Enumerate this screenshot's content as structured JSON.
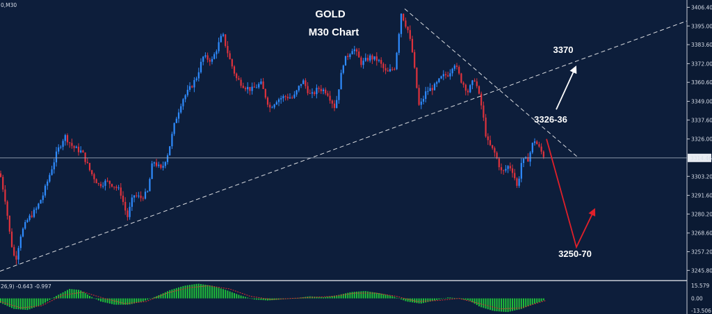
{
  "colors": {
    "background": "#0d1e3b",
    "bull_candle": "#2f8cff",
    "bear_candle": "#e0323c",
    "trendline": "#ffffff",
    "price_line": "#9aa6b8",
    "arrow_up": "#ffffff",
    "arrow_down": "#e0202a",
    "histogram": "#1fbf3a",
    "signal": "#e03030",
    "scale_bg": "#0b1a33"
  },
  "header": {
    "symbol_label": "0,M30",
    "title_line1": "GOLD",
    "title_line2": "M30 Chart"
  },
  "chart_data": {
    "type": "candlestick",
    "symbol": "GOLD",
    "timeframe": "M30",
    "ylim": [
      3240.0,
      3410.0
    ],
    "y_ticks": [
      "3406.40",
      "3395.00",
      "3383.60",
      "3372.00",
      "3360.60",
      "3349.00",
      "3337.60",
      "3326.00",
      "3314.46",
      "3303.20",
      "3291.60",
      "3280.20",
      "3268.60",
      "3257.20",
      "3245.80"
    ],
    "y_tick_values": [
      3406.4,
      3395.0,
      3383.6,
      3372.0,
      3360.6,
      3349.0,
      3337.6,
      3326.0,
      3314.46,
      3303.2,
      3291.6,
      3280.2,
      3268.6,
      3257.2,
      3245.8
    ],
    "current_price": 3314.46,
    "current_price_label": "3314.46",
    "price_path": [
      [
        0,
        3305
      ],
      [
        8,
        3288
      ],
      [
        15,
        3265
      ],
      [
        22,
        3251
      ],
      [
        30,
        3268
      ],
      [
        40,
        3277
      ],
      [
        52,
        3283
      ],
      [
        62,
        3292
      ],
      [
        72,
        3305
      ],
      [
        82,
        3318
      ],
      [
        93,
        3328
      ],
      [
        105,
        3321
      ],
      [
        118,
        3318
      ],
      [
        130,
        3306
      ],
      [
        142,
        3298
      ],
      [
        153,
        3300
      ],
      [
        163,
        3298
      ],
      [
        173,
        3294
      ],
      [
        183,
        3278
      ],
      [
        192,
        3292
      ],
      [
        202,
        3290
      ],
      [
        212,
        3293
      ],
      [
        220,
        3313
      ],
      [
        232,
        3307
      ],
      [
        242,
        3318
      ],
      [
        252,
        3337
      ],
      [
        262,
        3350
      ],
      [
        272,
        3356
      ],
      [
        282,
        3363
      ],
      [
        292,
        3376
      ],
      [
        305,
        3374
      ],
      [
        320,
        3390
      ],
      [
        330,
        3375
      ],
      [
        340,
        3363
      ],
      [
        352,
        3358
      ],
      [
        362,
        3356
      ],
      [
        375,
        3360
      ],
      [
        388,
        3345
      ],
      [
        398,
        3350
      ],
      [
        410,
        3352
      ],
      [
        422,
        3351
      ],
      [
        435,
        3362
      ],
      [
        447,
        3352
      ],
      [
        458,
        3357
      ],
      [
        470,
        3355
      ],
      [
        482,
        3345
      ],
      [
        494,
        3373
      ],
      [
        508,
        3382
      ],
      [
        520,
        3372
      ],
      [
        532,
        3376
      ],
      [
        544,
        3374
      ],
      [
        556,
        3366
      ],
      [
        568,
        3370
      ],
      [
        577,
        3403
      ],
      [
        587,
        3392
      ],
      [
        593,
        3379
      ],
      [
        603,
        3345
      ],
      [
        613,
        3355
      ],
      [
        625,
        3358
      ],
      [
        636,
        3364
      ],
      [
        646,
        3366
      ],
      [
        653,
        3373
      ],
      [
        663,
        3362
      ],
      [
        673,
        3355
      ],
      [
        683,
        3363
      ],
      [
        693,
        3345
      ],
      [
        700,
        3325
      ],
      [
        712,
        3317
      ],
      [
        722,
        3305
      ],
      [
        732,
        3310
      ],
      [
        738,
        3306
      ],
      [
        744,
        3296
      ],
      [
        750,
        3312
      ],
      [
        760,
        3314
      ],
      [
        768,
        3326
      ],
      [
        776,
        3320
      ],
      [
        783,
        3315
      ]
    ],
    "trendlines": [
      {
        "x1": 0,
        "y1": 3245.3,
        "x2": 1010,
        "y2": 3401.5
      },
      {
        "x1": 582,
        "y1": 3405.5,
        "x2": 832,
        "y2": 3314.5
      }
    ],
    "annotations": [
      {
        "text": "3370",
        "x": 810,
        "y": 3378.5
      },
      {
        "text": "3326-36",
        "x": 792,
        "y": 3336.0
      },
      {
        "text": "3250-70",
        "x": 827,
        "y": 3254.0
      }
    ],
    "projections": [
      {
        "kind": "bullish",
        "points": [
          [
            800,
            3344
          ],
          [
            828,
            3370
          ]
        ]
      },
      {
        "kind": "bearish",
        "points": [
          [
            786,
            3326
          ],
          [
            829,
            3260
          ],
          [
            855,
            3283
          ]
        ]
      }
    ],
    "oscillator": {
      "label": "26,9) -0.643 -0.997",
      "ylim": [
        -13.506,
        15.579
      ],
      "y_ticks": [
        "15.579",
        "0.00",
        "-13.506"
      ],
      "y_tick_values": [
        15.579,
        0.0,
        -13.506
      ],
      "histogram": [
        [
          0,
          -4
        ],
        [
          20,
          -10
        ],
        [
          40,
          -11
        ],
        [
          60,
          -6
        ],
        [
          80,
          2
        ],
        [
          100,
          9
        ],
        [
          115,
          8
        ],
        [
          130,
          2
        ],
        [
          145,
          -3
        ],
        [
          165,
          -6
        ],
        [
          185,
          -6
        ],
        [
          205,
          -3
        ],
        [
          225,
          2
        ],
        [
          245,
          8
        ],
        [
          265,
          12
        ],
        [
          285,
          14
        ],
        [
          305,
          12
        ],
        [
          325,
          8
        ],
        [
          345,
          3
        ],
        [
          365,
          -1
        ],
        [
          385,
          -2
        ],
        [
          405,
          -1
        ],
        [
          425,
          0
        ],
        [
          445,
          2
        ],
        [
          465,
          1
        ],
        [
          485,
          3
        ],
        [
          505,
          6
        ],
        [
          525,
          7
        ],
        [
          545,
          5
        ],
        [
          565,
          2
        ],
        [
          585,
          -3
        ],
        [
          605,
          -5
        ],
        [
          625,
          -2
        ],
        [
          645,
          1
        ],
        [
          660,
          0
        ],
        [
          675,
          -2
        ],
        [
          690,
          -8
        ],
        [
          710,
          -12
        ],
        [
          730,
          -13
        ],
        [
          750,
          -10
        ],
        [
          765,
          -6
        ],
        [
          778,
          -3
        ],
        [
          785,
          -1
        ]
      ],
      "signal": [
        [
          0,
          -3
        ],
        [
          30,
          -9
        ],
        [
          60,
          -7
        ],
        [
          90,
          3
        ],
        [
          120,
          6
        ],
        [
          150,
          0
        ],
        [
          180,
          -5
        ],
        [
          210,
          -3
        ],
        [
          240,
          5
        ],
        [
          270,
          10
        ],
        [
          300,
          12
        ],
        [
          330,
          9
        ],
        [
          360,
          2
        ],
        [
          390,
          -1
        ],
        [
          420,
          0
        ],
        [
          450,
          1
        ],
        [
          480,
          2
        ],
        [
          510,
          5
        ],
        [
          540,
          5
        ],
        [
          570,
          2
        ],
        [
          600,
          -3
        ],
        [
          630,
          -2
        ],
        [
          660,
          0
        ],
        [
          690,
          -5
        ],
        [
          720,
          -10
        ],
        [
          750,
          -9
        ],
        [
          785,
          -2
        ]
      ]
    }
  }
}
